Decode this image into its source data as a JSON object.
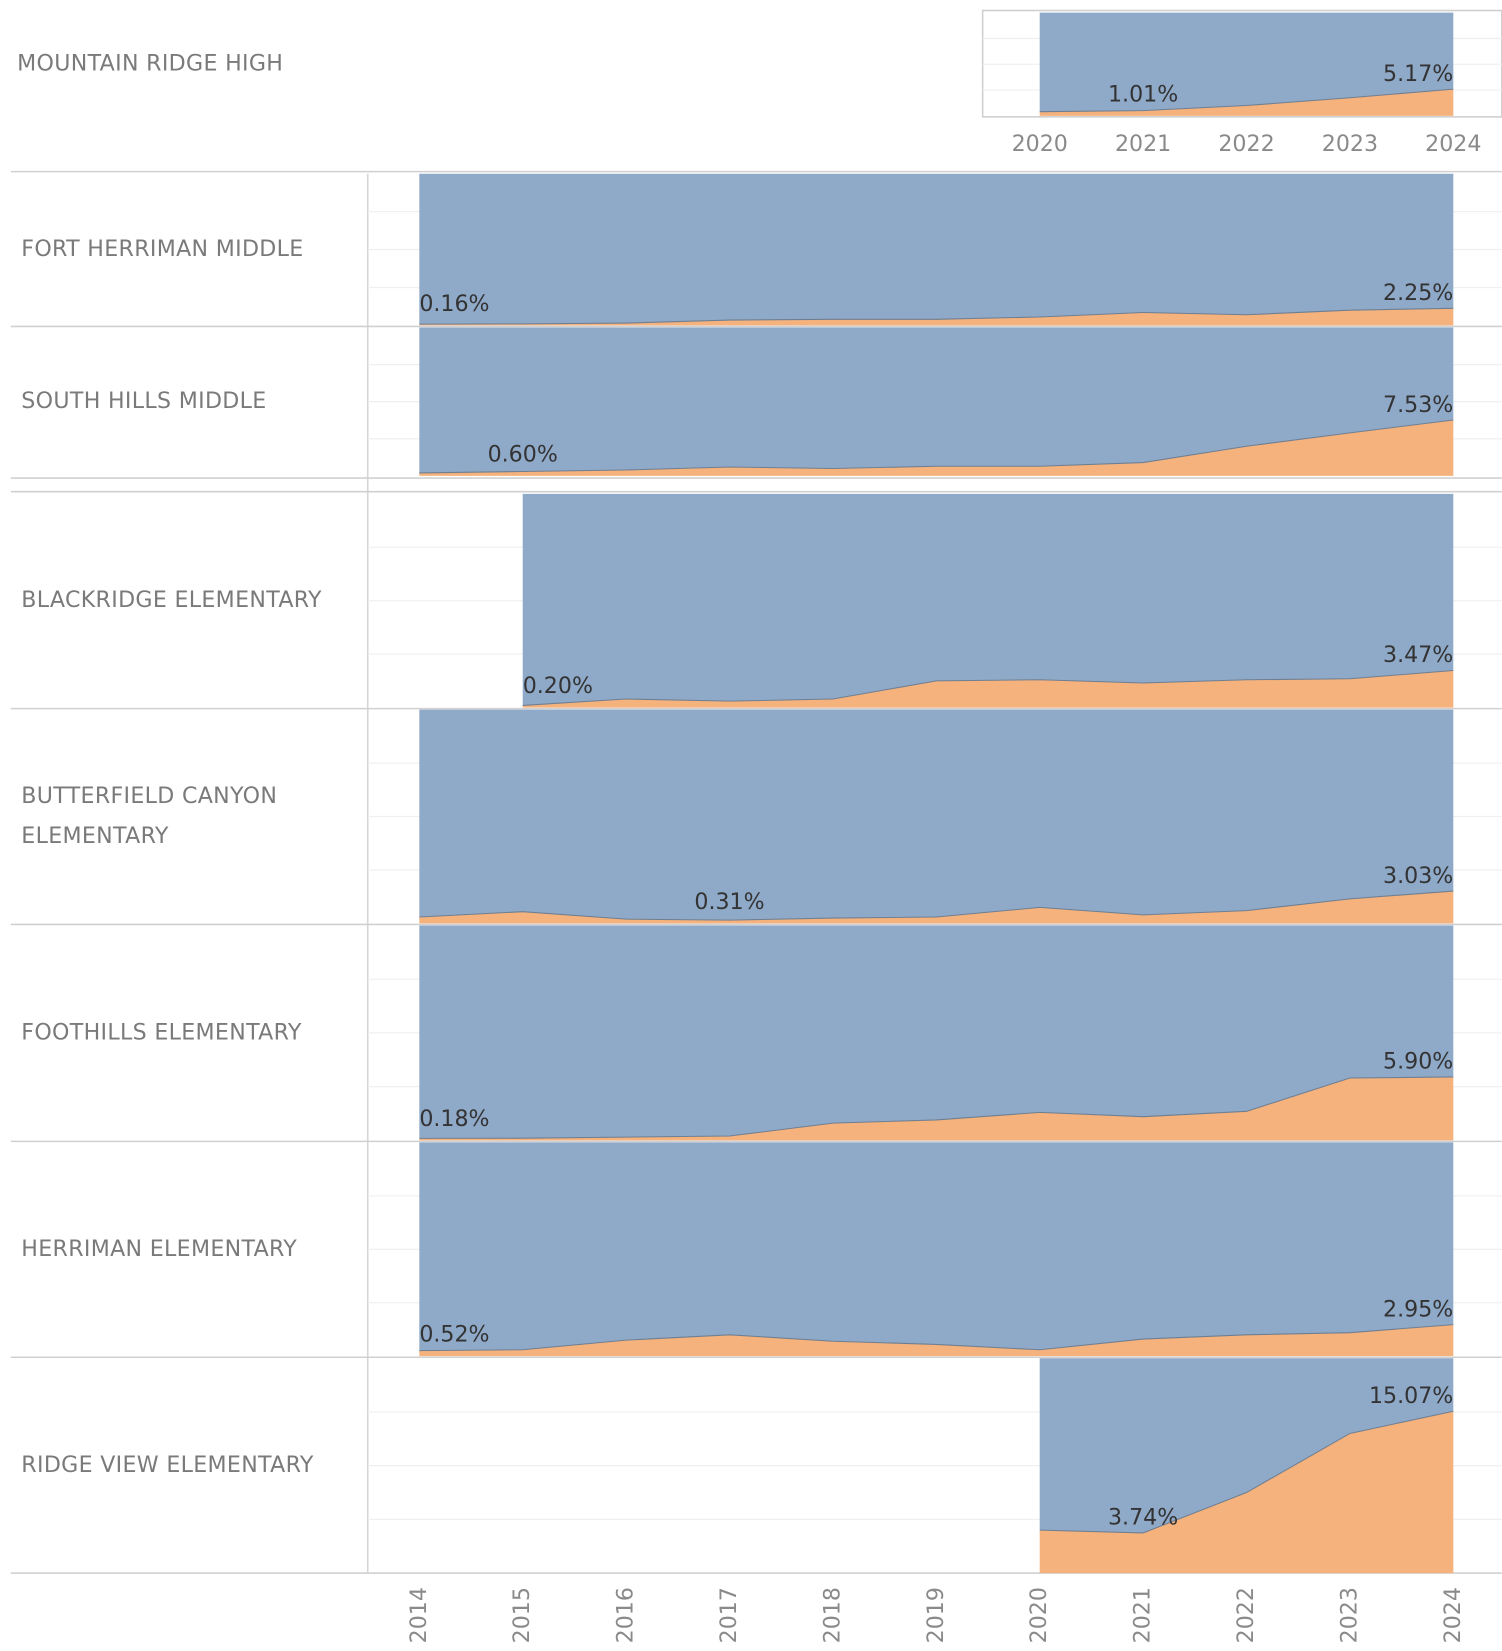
{
  "chart_data": {
    "type": "area",
    "colors": {
      "share": "#f5b27c",
      "rest": "#8fa9c8"
    },
    "ylim": [
      0,
      20
    ],
    "yticks": [
      0,
      5,
      10,
      15,
      20
    ],
    "grid": true,
    "xlim": [
      2014,
      2024
    ],
    "xticks": [
      2014,
      2015,
      2016,
      2017,
      2018,
      2019,
      2020,
      2021,
      2022,
      2023,
      2024
    ],
    "panels": [
      {
        "label": [
          "MOUNTAIN RIDGE HIGH"
        ],
        "xticks": [
          2020,
          2021,
          2022,
          2023,
          2024
        ],
        "x": [
          2020,
          2021,
          2022,
          2023,
          2024
        ],
        "values": [
          0.8,
          1.01,
          2.0,
          3.5,
          5.17
        ],
        "value_labels": [
          null,
          "1.01%",
          null,
          null,
          "5.17%"
        ]
      },
      {
        "label": [
          "FORT HERRIMAN MIDDLE"
        ],
        "x": [
          2014,
          2015,
          2016,
          2017,
          2018,
          2019,
          2020,
          2021,
          2022,
          2023,
          2024
        ],
        "values": [
          0.16,
          0.2,
          0.3,
          0.7,
          0.8,
          0.8,
          1.1,
          1.7,
          1.4,
          2.0,
          2.25
        ],
        "value_labels": [
          "0.16%",
          null,
          null,
          null,
          null,
          null,
          null,
          null,
          null,
          null,
          "2.25%"
        ]
      },
      {
        "label": [
          "SOUTH HILLS MIDDLE"
        ],
        "x": [
          2014,
          2015,
          2016,
          2017,
          2018,
          2019,
          2020,
          2021,
          2022,
          2023,
          2024
        ],
        "values": [
          0.4,
          0.6,
          0.8,
          1.2,
          1.0,
          1.3,
          1.3,
          1.8,
          4.0,
          5.8,
          7.53
        ],
        "value_labels": [
          null,
          "0.60%",
          null,
          null,
          null,
          null,
          null,
          null,
          null,
          null,
          "7.53%"
        ]
      },
      {
        "label": [
          "BLACKRIDGE ELEMENTARY"
        ],
        "x": [
          2015,
          2016,
          2017,
          2018,
          2019,
          2020,
          2021,
          2022,
          2023,
          2024
        ],
        "values": [
          0.2,
          0.8,
          0.6,
          0.8,
          2.5,
          2.6,
          2.3,
          2.6,
          2.7,
          3.47
        ],
        "value_labels": [
          "0.20%",
          null,
          null,
          null,
          null,
          null,
          null,
          null,
          null,
          "3.47%"
        ]
      },
      {
        "label": [
          "BUTTERFIELD CANYON",
          "ELEMENTARY"
        ],
        "x": [
          2014,
          2015,
          2016,
          2017,
          2018,
          2019,
          2020,
          2021,
          2022,
          2023,
          2024
        ],
        "values": [
          0.6,
          1.1,
          0.4,
          0.31,
          0.5,
          0.6,
          1.5,
          0.8,
          1.2,
          2.3,
          3.03
        ],
        "value_labels": [
          null,
          null,
          null,
          "0.31%",
          null,
          null,
          null,
          null,
          null,
          null,
          "3.03%"
        ]
      },
      {
        "label": [
          "FOOTHILLS ELEMENTARY"
        ],
        "x": [
          2014,
          2015,
          2016,
          2017,
          2018,
          2019,
          2020,
          2021,
          2022,
          2023,
          2024
        ],
        "values": [
          0.18,
          0.2,
          0.3,
          0.4,
          1.6,
          1.9,
          2.6,
          2.2,
          2.7,
          5.8,
          5.9
        ],
        "value_labels": [
          "0.18%",
          null,
          null,
          null,
          null,
          null,
          null,
          null,
          null,
          null,
          "5.90%"
        ]
      },
      {
        "label": [
          "HERRIMAN ELEMENTARY"
        ],
        "x": [
          2014,
          2015,
          2016,
          2017,
          2018,
          2019,
          2020,
          2021,
          2022,
          2023,
          2024
        ],
        "values": [
          0.52,
          0.6,
          1.5,
          2.0,
          1.4,
          1.1,
          0.6,
          1.6,
          2.0,
          2.2,
          2.95
        ],
        "value_labels": [
          "0.52%",
          null,
          null,
          null,
          null,
          null,
          null,
          null,
          null,
          null,
          "2.95%"
        ]
      },
      {
        "label": [
          "RIDGE VIEW ELEMENTARY"
        ],
        "x": [
          2020,
          2021,
          2022,
          2023,
          2024
        ],
        "values": [
          4.0,
          3.74,
          7.5,
          13.0,
          15.07
        ],
        "value_labels": [
          null,
          "3.74%",
          null,
          null,
          "15.07%"
        ]
      }
    ]
  }
}
